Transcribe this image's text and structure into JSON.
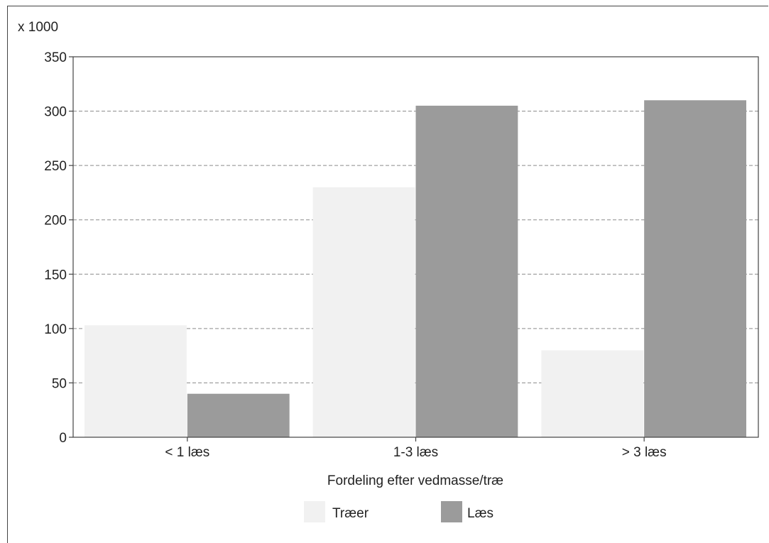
{
  "chart_data": {
    "type": "bar",
    "unit_label": "x 1000",
    "xlabel": "Fordeling efter vedmasse/træ",
    "categories": [
      "< 1 læs",
      "1-3 læs",
      "> 3 læs"
    ],
    "series": [
      {
        "name": "Træer",
        "values": [
          103,
          230,
          80
        ],
        "color": "#f1f1f1"
      },
      {
        "name": "Læs",
        "values": [
          40,
          305,
          310
        ],
        "color": "#9b9b9b"
      }
    ],
    "ylim": [
      0,
      350
    ],
    "yticks": [
      0,
      50,
      100,
      150,
      200,
      250,
      300,
      350
    ],
    "grid": true,
    "legend_position": "bottom-center"
  }
}
